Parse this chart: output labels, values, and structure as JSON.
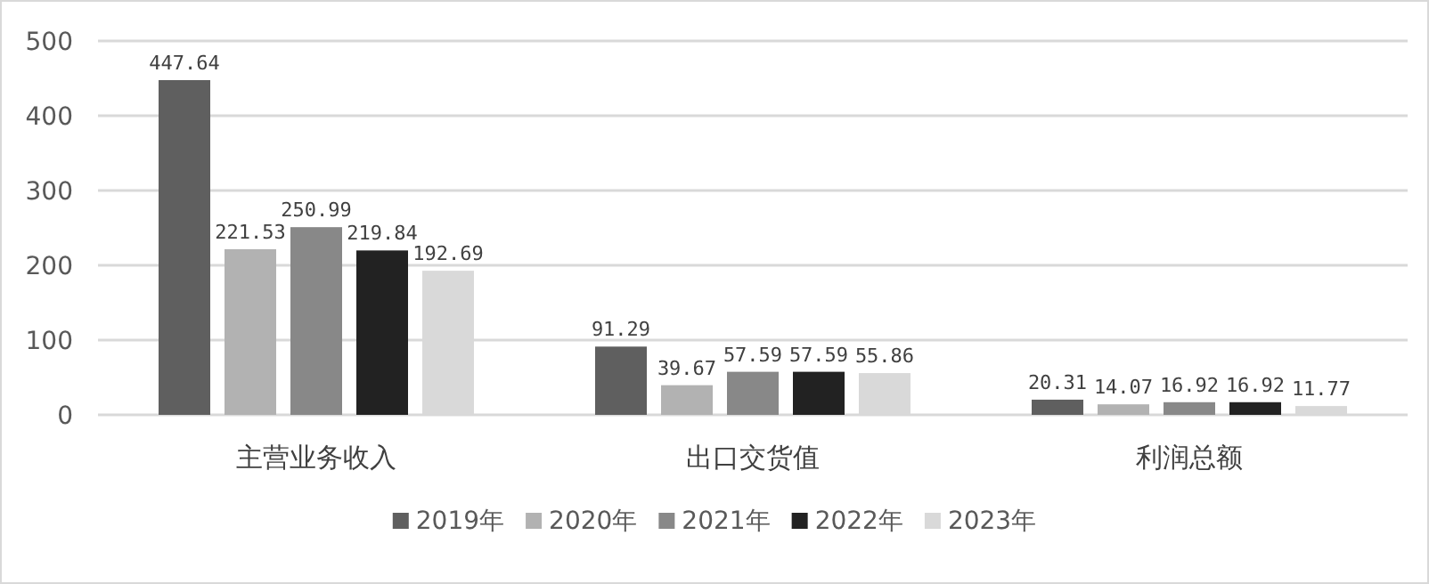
{
  "chart_data": {
    "type": "bar",
    "categories": [
      "主营业务收入",
      "出口交货值",
      "利润总额"
    ],
    "series": [
      {
        "name": "2019年",
        "color": "#5f5f5f",
        "values": [
          447.64,
          91.29,
          20.31
        ]
      },
      {
        "name": "2020年",
        "color": "#b2b2b2",
        "values": [
          221.53,
          39.67,
          14.07
        ]
      },
      {
        "name": "2021年",
        "color": "#888888",
        "values": [
          250.99,
          57.59,
          16.92
        ]
      },
      {
        "name": "2022年",
        "color": "#222222",
        "values": [
          219.84,
          57.59,
          16.92
        ]
      },
      {
        "name": "2023年",
        "color": "#d9d9d9",
        "values": [
          192.69,
          55.86,
          11.77
        ]
      }
    ],
    "ylim": [
      0,
      500
    ],
    "yticks": [
      0,
      100,
      200,
      300,
      400,
      500
    ],
    "grid": "y",
    "legend": "bottom",
    "data_labels": true
  }
}
